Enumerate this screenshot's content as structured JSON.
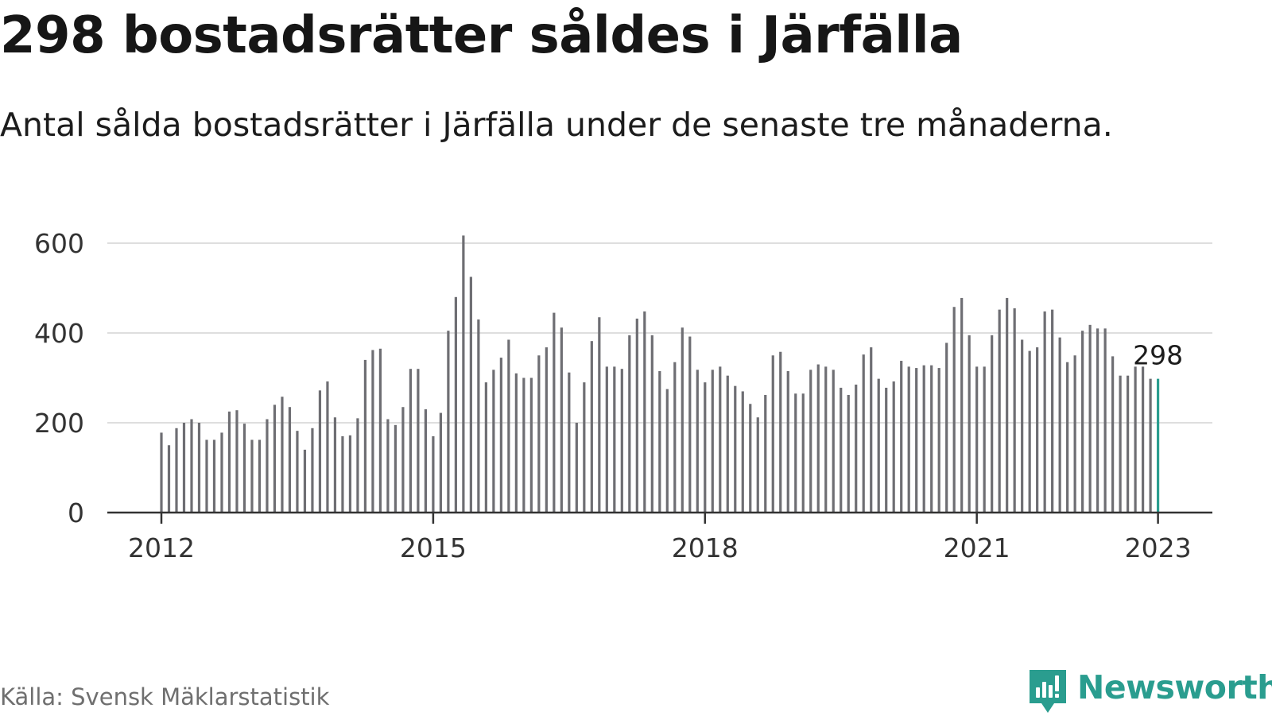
{
  "header": {
    "title": "298 bostadsrätter såldes i Järfälla",
    "subtitle": "Antal sålda bostadsrätter i Järfälla under de senaste tre månaderna."
  },
  "footer": {
    "source": "Källa: Svensk Mäklarstatistik",
    "brand": "Newsworthy",
    "brand_icon": "newsworthy-logo-icon"
  },
  "colors": {
    "bar": "#6e6e73",
    "highlight": "#2a9d8f",
    "grid": "#dedede",
    "axis": "#333333",
    "brand": "#2a9d8f"
  },
  "chart_data": {
    "type": "bar",
    "title": "",
    "xlabel": "",
    "ylabel": "",
    "ylim": [
      0,
      600
    ],
    "y_ticks": [
      0,
      200,
      400,
      600
    ],
    "x_ticks": [
      "2012",
      "2015",
      "2018",
      "2021",
      "2023"
    ],
    "grid": true,
    "legend": "none",
    "start": "2012-01",
    "end": "2023-01",
    "highlight_label": "298",
    "values": [
      178,
      150,
      188,
      200,
      208,
      200,
      162,
      162,
      178,
      225,
      228,
      198,
      162,
      162,
      208,
      240,
      258,
      235,
      182,
      140,
      188,
      272,
      292,
      212,
      170,
      172,
      210,
      340,
      362,
      365,
      208,
      195,
      235,
      320,
      320,
      230,
      170,
      222,
      405,
      480,
      617,
      525,
      430,
      290,
      318,
      345,
      385,
      310,
      300,
      300,
      350,
      368,
      445,
      412,
      312,
      200,
      290,
      382,
      435,
      325,
      325,
      320,
      395,
      432,
      448,
      395,
      315,
      275,
      335,
      412,
      392,
      318,
      290,
      318,
      325,
      305,
      282,
      270,
      242,
      212,
      262,
      350,
      358,
      315,
      265,
      265,
      318,
      330,
      325,
      318,
      278,
      262,
      285,
      352,
      368,
      298,
      278,
      292,
      338,
      325,
      322,
      328,
      328,
      322,
      378,
      458,
      478,
      395,
      325,
      325,
      395,
      452,
      478,
      455,
      385,
      360,
      368,
      448,
      452,
      390,
      335,
      350,
      405,
      418,
      410,
      410,
      348,
      305,
      305,
      325,
      325,
      298,
      298
    ]
  }
}
